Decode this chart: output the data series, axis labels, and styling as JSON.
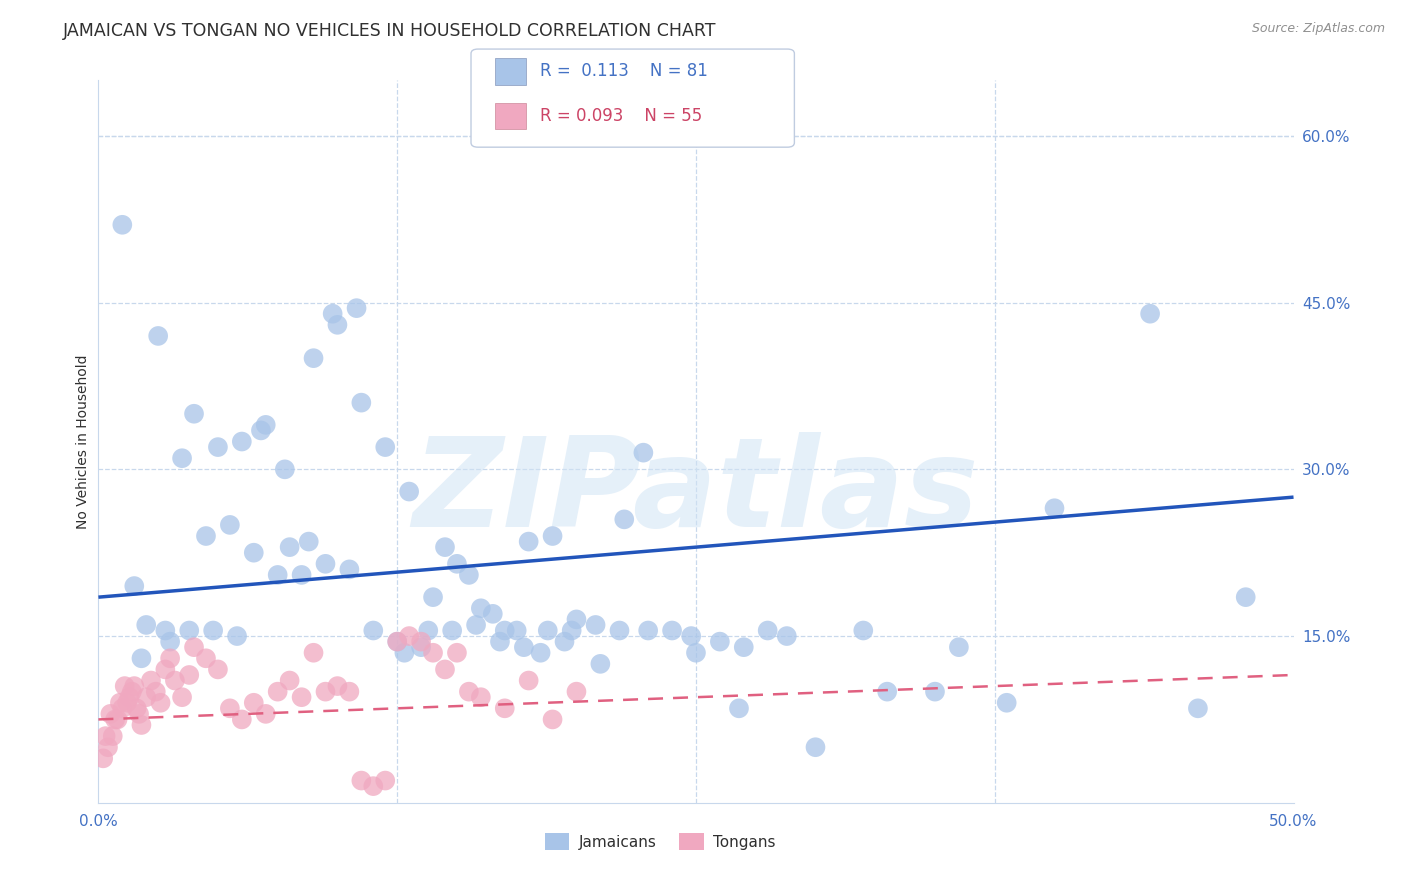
{
  "title": "JAMAICAN VS TONGAN NO VEHICLES IN HOUSEHOLD CORRELATION CHART",
  "source": "Source: ZipAtlas.com",
  "ylabel": "No Vehicles in Household",
  "xlim": [
    0.0,
    50.0
  ],
  "ylim": [
    0.0,
    65.0
  ],
  "jamaican_color": "#a8c4e8",
  "tongan_color": "#f0a8c0",
  "jamaican_line_color": "#2255bb",
  "tongan_line_color": "#e06080",
  "axis_color": "#4472c4",
  "grid_color": "#c8d8ec",
  "watermark_color": "#d0e4f5",
  "background_color": "#ffffff",
  "watermark": "ZIPatlas",
  "legend_R1": "R =  0.113",
  "legend_N1": "N = 81",
  "legend_R2": "R = 0.093",
  "legend_N2": "N = 55",
  "jamaican_line_x0": 0.0,
  "jamaican_line_y0": 18.5,
  "jamaican_line_x1": 50.0,
  "jamaican_line_y1": 27.5,
  "tongan_line_x0": 0.0,
  "tongan_line_y0": 7.5,
  "tongan_line_x1": 50.0,
  "tongan_line_y1": 11.5,
  "jamaican_x": [
    1.0,
    2.5,
    4.0,
    5.0,
    6.0,
    7.0,
    8.0,
    9.0,
    10.0,
    11.0,
    12.0,
    13.0,
    15.0,
    16.0,
    17.0,
    18.0,
    19.0,
    20.0,
    22.0,
    23.0,
    24.0,
    25.0,
    27.0,
    30.0,
    35.0,
    40.0,
    1.5,
    2.0,
    3.0,
    3.5,
    4.5,
    5.5,
    6.5,
    7.5,
    8.5,
    9.5,
    10.5,
    11.5,
    12.5,
    13.5,
    14.0,
    14.5,
    15.5,
    16.5,
    17.5,
    18.5,
    19.5,
    21.0,
    26.0,
    28.0,
    32.0,
    36.0,
    1.8,
    2.8,
    3.8,
    4.8,
    5.8,
    6.8,
    7.8,
    8.8,
    9.8,
    10.8,
    12.8,
    13.8,
    14.8,
    15.8,
    16.8,
    17.8,
    18.8,
    19.8,
    20.8,
    21.8,
    22.8,
    24.8,
    26.8,
    28.8,
    33.0,
    38.0,
    44.0,
    46.0,
    48.0
  ],
  "jamaican_y": [
    52.0,
    42.0,
    35.0,
    32.0,
    32.5,
    34.0,
    23.0,
    40.0,
    43.0,
    36.0,
    32.0,
    28.0,
    21.5,
    17.5,
    15.5,
    23.5,
    24.0,
    16.5,
    25.5,
    15.5,
    15.5,
    13.5,
    14.0,
    5.0,
    10.0,
    26.5,
    19.5,
    16.0,
    14.5,
    31.0,
    24.0,
    25.0,
    22.5,
    20.5,
    20.5,
    21.5,
    21.0,
    15.5,
    14.5,
    14.0,
    18.5,
    23.0,
    20.5,
    17.0,
    15.5,
    13.5,
    14.5,
    12.5,
    14.5,
    15.5,
    15.5,
    14.0,
    13.0,
    15.5,
    15.5,
    15.5,
    15.0,
    33.5,
    30.0,
    23.5,
    44.0,
    44.5,
    13.5,
    15.5,
    15.5,
    16.0,
    14.5,
    14.0,
    15.5,
    15.5,
    16.0,
    15.5,
    31.5,
    15.0,
    8.5,
    15.0,
    10.0,
    9.0,
    44.0,
    8.5,
    18.5
  ],
  "tongan_x": [
    0.2,
    0.4,
    0.6,
    0.8,
    1.0,
    1.2,
    1.4,
    1.6,
    1.8,
    2.0,
    2.2,
    2.4,
    2.6,
    2.8,
    3.0,
    3.2,
    3.5,
    3.8,
    4.0,
    4.5,
    5.0,
    5.5,
    6.0,
    6.5,
    7.0,
    7.5,
    8.0,
    8.5,
    9.0,
    9.5,
    10.0,
    10.5,
    11.0,
    11.5,
    12.0,
    12.5,
    13.0,
    13.5,
    14.0,
    14.5,
    15.0,
    15.5,
    16.0,
    17.0,
    18.0,
    19.0,
    20.0,
    0.3,
    0.5,
    0.7,
    0.9,
    1.1,
    1.3,
    1.5,
    1.7
  ],
  "tongan_y": [
    4.0,
    5.0,
    6.0,
    7.5,
    8.5,
    9.0,
    10.0,
    8.5,
    7.0,
    9.5,
    11.0,
    10.0,
    9.0,
    12.0,
    13.0,
    11.0,
    9.5,
    11.5,
    14.0,
    13.0,
    12.0,
    8.5,
    7.5,
    9.0,
    8.0,
    10.0,
    11.0,
    9.5,
    13.5,
    10.0,
    10.5,
    10.0,
    2.0,
    1.5,
    2.0,
    14.5,
    15.0,
    14.5,
    13.5,
    12.0,
    13.5,
    10.0,
    9.5,
    8.5,
    11.0,
    7.5,
    10.0,
    6.0,
    8.0,
    7.5,
    9.0,
    10.5,
    9.5,
    10.5,
    8.0
  ]
}
